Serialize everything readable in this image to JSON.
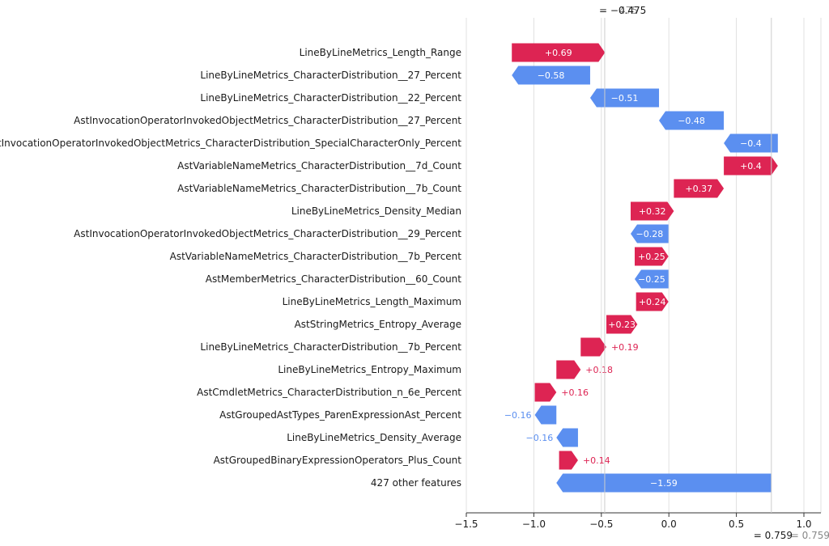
{
  "chart_data": {
    "type": "waterfall",
    "base_value_label": "= −0.475",
    "base_value_ghost": "475",
    "base_value": -0.475,
    "final_value_label": "= 0.759",
    "final_value_ghost": "= 0.759",
    "final_value": 0.759,
    "xlim": [
      -1.5,
      1.1
    ],
    "xticks": [
      -1.5,
      -1.0,
      -0.5,
      0.0,
      0.5,
      1.0
    ],
    "xtick_labels": [
      "−1.5",
      "−1.0",
      "−0.5",
      "0.0",
      "0.5",
      "1.0"
    ],
    "grid": true,
    "colors": {
      "positive": "#ff0051",
      "negative": "#008bfb",
      "positive_bar": "#dd2453",
      "negative_bar": "#5b8ff0"
    },
    "features": [
      {
        "name": "LineByLineMetrics_Length_Range",
        "start": -1.163,
        "value": 0.69,
        "label": "+0.69"
      },
      {
        "name": "LineByLineMetrics_CharacterDistribution__27_Percent",
        "start": -0.583,
        "value": -0.58,
        "label": "−0.58"
      },
      {
        "name": "LineByLineMetrics_CharacterDistribution__22_Percent",
        "start": -0.073,
        "value": -0.51,
        "label": "−0.51"
      },
      {
        "name": "AstInvocationOperatorInvokedObjectMetrics_CharacterDistribution__27_Percent",
        "start": 0.407,
        "value": -0.48,
        "label": "−0.48"
      },
      {
        "name": "AstInvocationOperatorInvokedObjectMetrics_CharacterDistribution_SpecialCharacterOnly_Percent",
        "start": 0.807,
        "value": -0.4,
        "label": "−0.4"
      },
      {
        "name": "AstVariableNameMetrics_CharacterDistribution__7d_Count",
        "start": 0.407,
        "value": 0.4,
        "label": "+0.4"
      },
      {
        "name": "AstVariableNameMetrics_CharacterDistribution__7b_Count",
        "start": 0.037,
        "value": 0.37,
        "label": "+0.37"
      },
      {
        "name": "LineByLineMetrics_Density_Median",
        "start": -0.283,
        "value": 0.32,
        "label": "+0.32"
      },
      {
        "name": "AstInvocationOperatorInvokedObjectMetrics_CharacterDistribution__29_Percent",
        "start": -0.003,
        "value": -0.28,
        "label": "−0.28"
      },
      {
        "name": "AstVariableNameMetrics_CharacterDistribution__7b_Percent",
        "start": -0.253,
        "value": 0.25,
        "label": "+0.25"
      },
      {
        "name": "AstMemberMetrics_CharacterDistribution__60_Count",
        "start": -0.003,
        "value": -0.25,
        "label": "−0.25"
      },
      {
        "name": "LineByLineMetrics_Length_Maximum",
        "start": -0.243,
        "value": 0.24,
        "label": "+0.24"
      },
      {
        "name": "AstStringMetrics_Entropy_Average",
        "start": -0.463,
        "value": 0.23,
        "label": "+0.23"
      },
      {
        "name": "LineByLineMetrics_CharacterDistribution__7b_Percent",
        "start": -0.653,
        "value": 0.19,
        "label": "+0.19"
      },
      {
        "name": "LineByLineMetrics_Entropy_Maximum",
        "start": -0.833,
        "value": 0.18,
        "label": "+0.18"
      },
      {
        "name": "AstCmdletMetrics_CharacterDistribution_n_6e_Percent",
        "start": -0.993,
        "value": 0.16,
        "label": "+0.16"
      },
      {
        "name": "AstGroupedAstTypes_ParenExpressionAst_Percent",
        "start": -0.833,
        "value": -0.16,
        "label": "−0.16"
      },
      {
        "name": "LineByLineMetrics_Density_Average",
        "start": -0.673,
        "value": -0.16,
        "label": "−0.16"
      },
      {
        "name": "AstGroupedBinaryExpressionOperators_Plus_Count",
        "start": -0.813,
        "value": 0.14,
        "label": "+0.14"
      },
      {
        "name": "427 other features",
        "start": 0.757,
        "value": -1.59,
        "label": "−1.59"
      }
    ]
  }
}
